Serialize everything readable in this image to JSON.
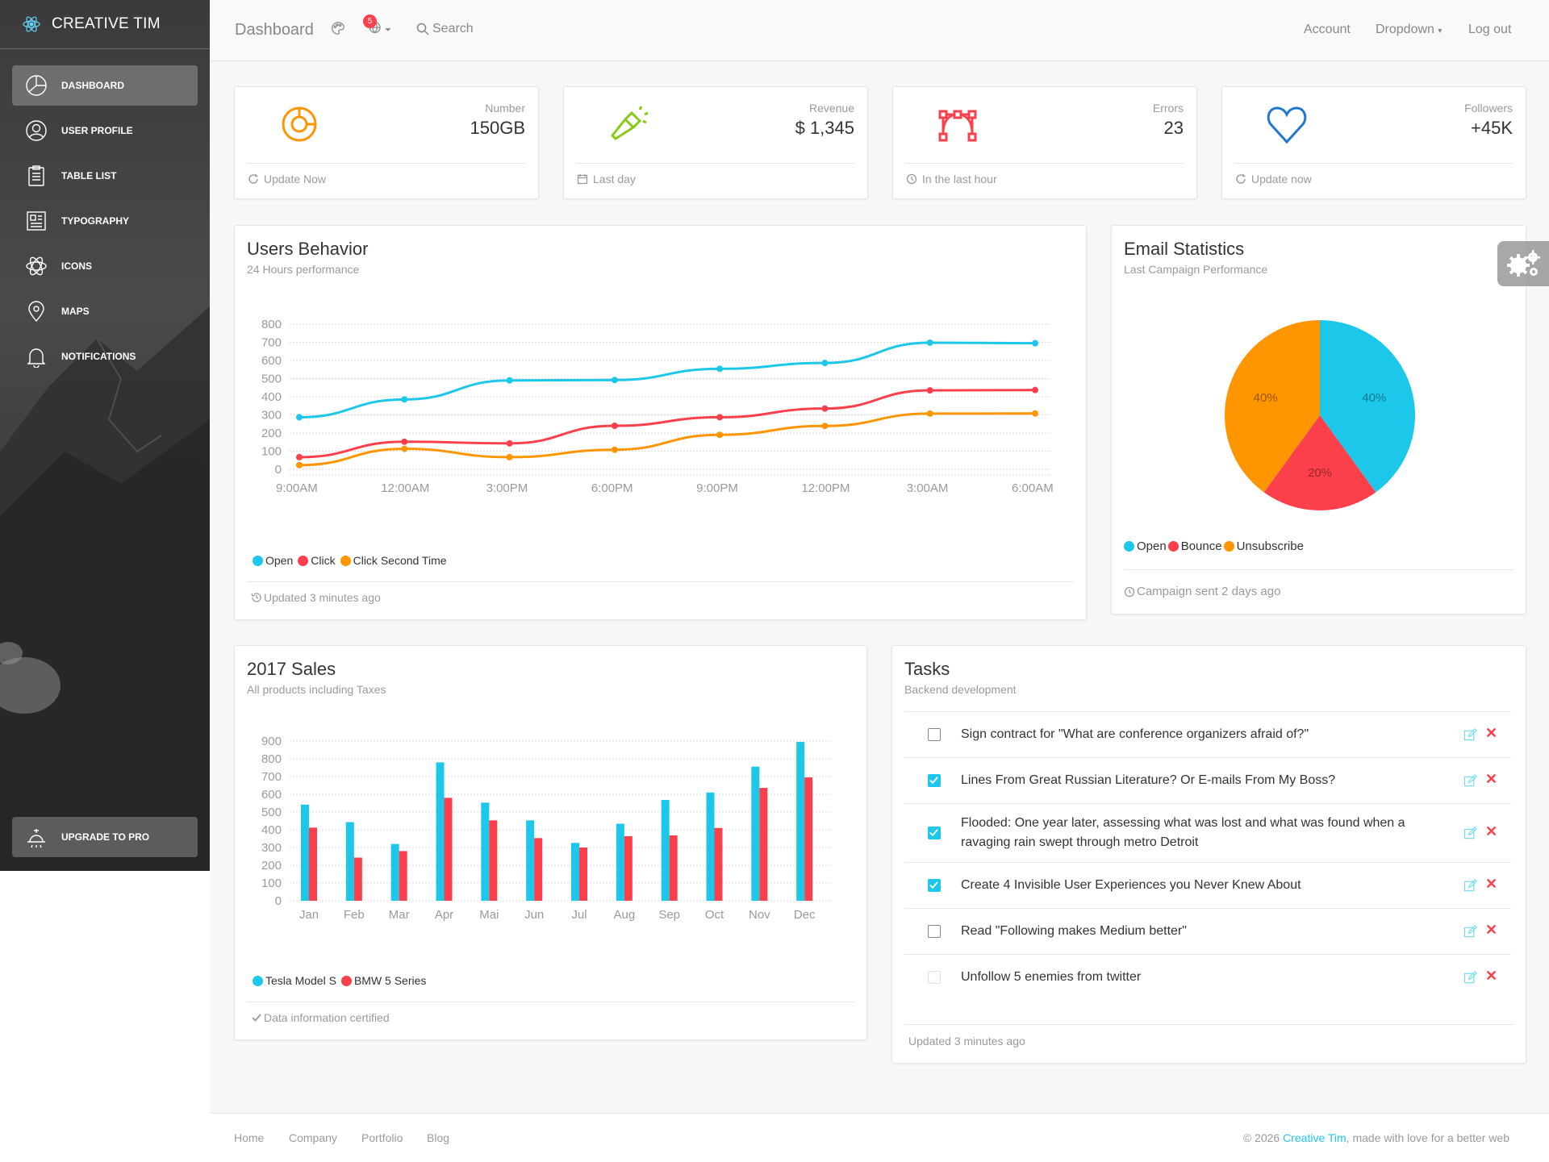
{
  "sidebar": {
    "brand": "CREATIVE TIM",
    "items": [
      {
        "label": "DASHBOARD",
        "icon": "chart-pie-icon"
      },
      {
        "label": "USER PROFILE",
        "icon": "user-circle-icon"
      },
      {
        "label": "TABLE LIST",
        "icon": "clipboard-icon"
      },
      {
        "label": "TYPOGRAPHY",
        "icon": "news-paper-icon"
      },
      {
        "label": "ICONS",
        "icon": "atom-icon"
      },
      {
        "label": "MAPS",
        "icon": "map-pin-icon"
      },
      {
        "label": "NOTIFICATIONS",
        "icon": "bell-icon"
      }
    ],
    "upgrade_label": "UPGRADE TO PRO"
  },
  "topnav": {
    "title": "Dashboard",
    "notification_count": "5",
    "search_label": "Search",
    "account": "Account",
    "dropdown": "Dropdown",
    "logout": "Log out"
  },
  "stats": [
    {
      "label": "Number",
      "value": "150GB",
      "footer": "Update Now",
      "icon": "chart-icon",
      "color": "#ff9500"
    },
    {
      "label": "Revenue",
      "value": "$ 1,345",
      "footer": "Last day",
      "icon": "flashlight-icon",
      "color": "#87cb16"
    },
    {
      "label": "Errors",
      "value": "23",
      "footer": "In the last hour",
      "icon": "vector-icon",
      "color": "#fb404b"
    },
    {
      "label": "Followers",
      "value": "+45K",
      "footer": "Update now",
      "icon": "heart-icon",
      "color": "#1f77d0"
    }
  ],
  "users_behavior": {
    "title": "Users Behavior",
    "subtitle": "24 Hours performance",
    "legend": [
      "Open",
      "Click",
      "Click Second Time"
    ],
    "footer": "Updated 3 minutes ago"
  },
  "email_stats": {
    "title": "Email Statistics",
    "subtitle": "Last Campaign Performance",
    "legend": [
      "Open",
      "Bounce",
      "Unsubscribe"
    ],
    "footer": "Campaign sent 2 days ago"
  },
  "sales": {
    "title": "2017 Sales",
    "subtitle": "All products including Taxes",
    "legend": [
      "Tesla Model S",
      "BMW 5 Series"
    ],
    "footer": "Data information certified"
  },
  "tasks": {
    "title": "Tasks",
    "subtitle": "Backend development",
    "items": [
      {
        "text": "Sign contract for \"What are conference organizers afraid of?\"",
        "checked": false
      },
      {
        "text": "Lines From Great Russian Literature? Or E-mails From My Boss?",
        "checked": true
      },
      {
        "text": "Flooded: One year later, assessing what was lost and what was found when a ravaging rain swept through metro Detroit",
        "checked": true
      },
      {
        "text": "Create 4 Invisible User Experiences you Never Knew About",
        "checked": true
      },
      {
        "text": "Read \"Following makes Medium better\"",
        "checked": false
      },
      {
        "text": "Unfollow 5 enemies from twitter",
        "checked": false
      }
    ],
    "footer": "Updated 3 minutes ago"
  },
  "footer": {
    "links": [
      "Home",
      "Company",
      "Portfolio",
      "Blog"
    ],
    "copyright_prefix": "© 2026",
    "copyright_brand": "Creative Tim",
    "copyright_suffix": ", made with love for a better web"
  },
  "colors": {
    "info": "#1dc7ea",
    "danger": "#fb404b",
    "warning": "#ff9500"
  },
  "chart_data": [
    {
      "type": "line",
      "x": [
        "9:00AM",
        "12:00AM",
        "3:00PM",
        "6:00PM",
        "9:00PM",
        "12:00PM",
        "3:00AM",
        "6:00AM"
      ],
      "ylim": [
        0,
        800
      ],
      "yticks": [
        "0",
        "100",
        "200",
        "300",
        "400",
        "500",
        "600",
        "700",
        "800"
      ],
      "grid": true,
      "series": [
        {
          "name": "Open",
          "values": [
            287,
            385,
            490,
            492,
            554,
            586,
            698,
            695
          ],
          "color": "#1dc7ea"
        },
        {
          "name": "Click",
          "values": [
            67,
            152,
            143,
            240,
            287,
            335,
            435,
            437
          ],
          "color": "#fb404b"
        },
        {
          "name": "Click Second Time",
          "values": [
            23,
            113,
            67,
            108,
            190,
            239,
            307,
            308
          ],
          "color": "#ff9500"
        }
      ]
    },
    {
      "type": "pie",
      "labels": [
        "Open",
        "Bounce",
        "Unsubscribe"
      ],
      "values": [
        40,
        20,
        40
      ],
      "value_labels": [
        "40%",
        "20%",
        "40%"
      ],
      "colors": [
        "#1dc7ea",
        "#fb404b",
        "#ff9500"
      ]
    },
    {
      "type": "bar",
      "categories": [
        "Jan",
        "Feb",
        "Mar",
        "Apr",
        "Mai",
        "Jun",
        "Jul",
        "Aug",
        "Sep",
        "Oct",
        "Nov",
        "Dec"
      ],
      "ylim": [
        0,
        900
      ],
      "yticks": [
        "0",
        "100",
        "200",
        "300",
        "400",
        "500",
        "600",
        "700",
        "800",
        "900"
      ],
      "grid": true,
      "series": [
        {
          "name": "Tesla Model S",
          "values": [
            542,
            443,
            320,
            780,
            553,
            453,
            326,
            434,
            568,
            610,
            756,
            895
          ],
          "color": "#1dc7ea"
        },
        {
          "name": "BMW 5 Series",
          "values": [
            412,
            243,
            280,
            580,
            453,
            353,
            300,
            364,
            368,
            410,
            636,
            695
          ],
          "color": "#fb404b"
        }
      ]
    }
  ]
}
